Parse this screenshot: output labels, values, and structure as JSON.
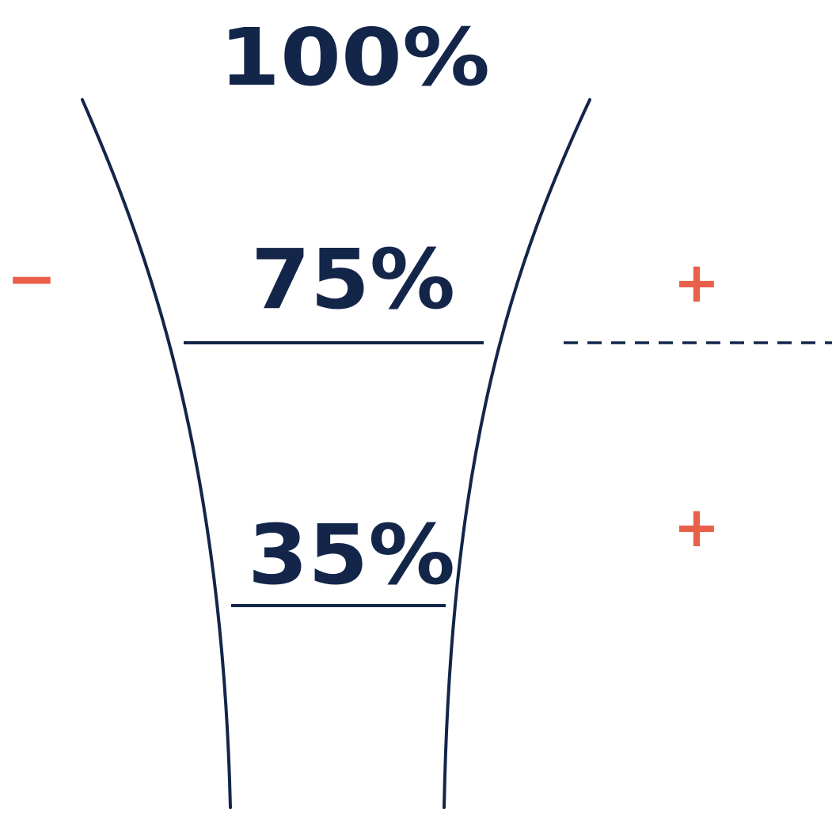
{
  "colors": {
    "ink": "#13264a",
    "accent": "#e8604a",
    "background": "#ffffff"
  },
  "levels": [
    {
      "label": "100%"
    },
    {
      "label": "75%"
    },
    {
      "label": "35%"
    }
  ],
  "signs": {
    "left": "−",
    "right_upper": "+",
    "right_lower": "+"
  }
}
